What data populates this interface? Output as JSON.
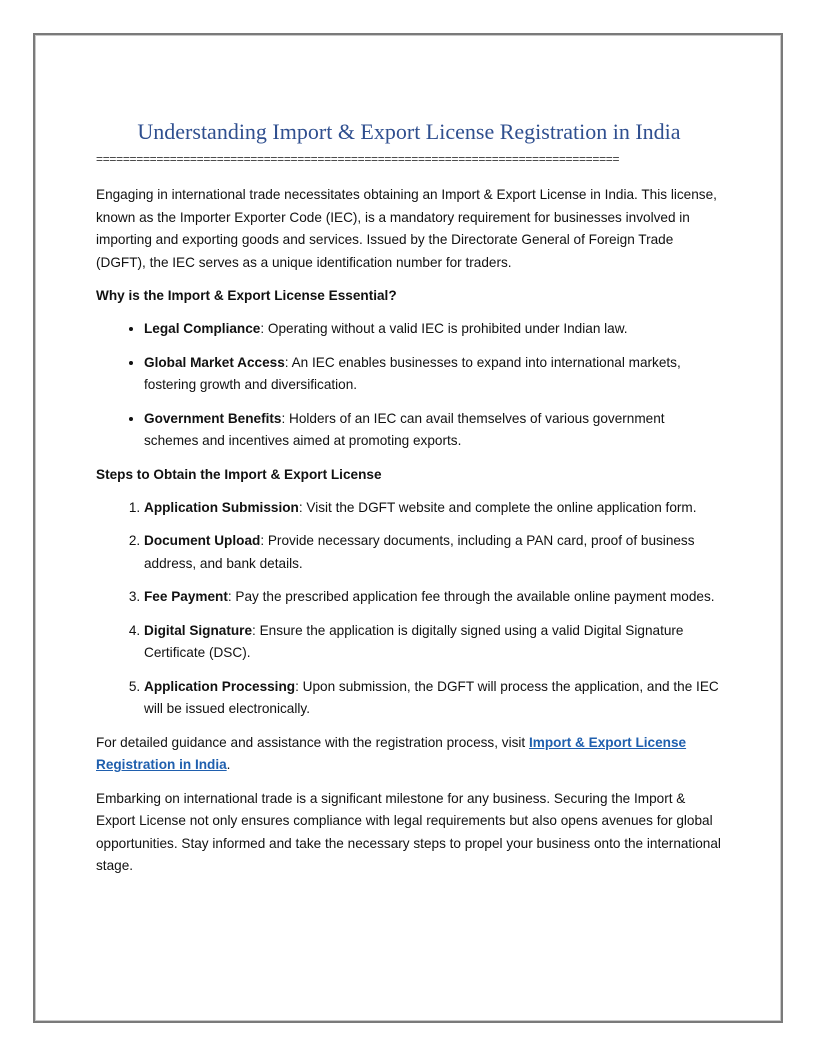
{
  "title": "Understanding Import & Export License Registration in India",
  "rule": "==============================================================================",
  "intro": "Engaging in international trade necessitates obtaining an Import & Export License in India. This license, known as the Importer Exporter Code (IEC), is a mandatory requirement for businesses involved in importing and exporting goods and services. Issued by the Directorate General of Foreign Trade (DGFT), the IEC serves as a unique identification number for traders.",
  "why_heading": "Why is the Import & Export License Essential?",
  "why_items": [
    {
      "term": "Legal Compliance",
      "text": ": Operating without a valid IEC is prohibited under Indian law."
    },
    {
      "term": "Global Market Access",
      "text": ": An IEC enables businesses to expand into international markets, fostering growth and diversification."
    },
    {
      "term": "Government Benefits",
      "text": ": Holders of an IEC can avail themselves of various government schemes and incentives aimed at promoting exports."
    }
  ],
  "steps_heading": "Steps to Obtain the Import & Export License",
  "steps": [
    {
      "term": "Application Submission",
      "text": ": Visit the DGFT website and complete the online application form."
    },
    {
      "term": "Document Upload",
      "text": ": Provide necessary documents, including a PAN card, proof of business address, and bank details."
    },
    {
      "term": "Fee Payment",
      "text": ": Pay the prescribed application fee through the available online payment modes."
    },
    {
      "term": "Digital Signature",
      "text": ": Ensure the application is digitally signed using a valid Digital Signature Certificate (DSC)."
    },
    {
      "term": "Application Processing",
      "text": ": Upon submission, the DGFT will process the application, and the IEC will be issued electronically."
    }
  ],
  "guidance": {
    "before": "For detailed guidance and assistance with the registration process, visit ",
    "link": "Import & Export License Registration in India",
    "after": "."
  },
  "closing": "Embarking on international trade is a significant milestone for any business. Securing the Import & Export License not only ensures compliance with legal requirements but also opens avenues for global opportunities. Stay informed and take the necessary steps to propel your business onto the international stage."
}
